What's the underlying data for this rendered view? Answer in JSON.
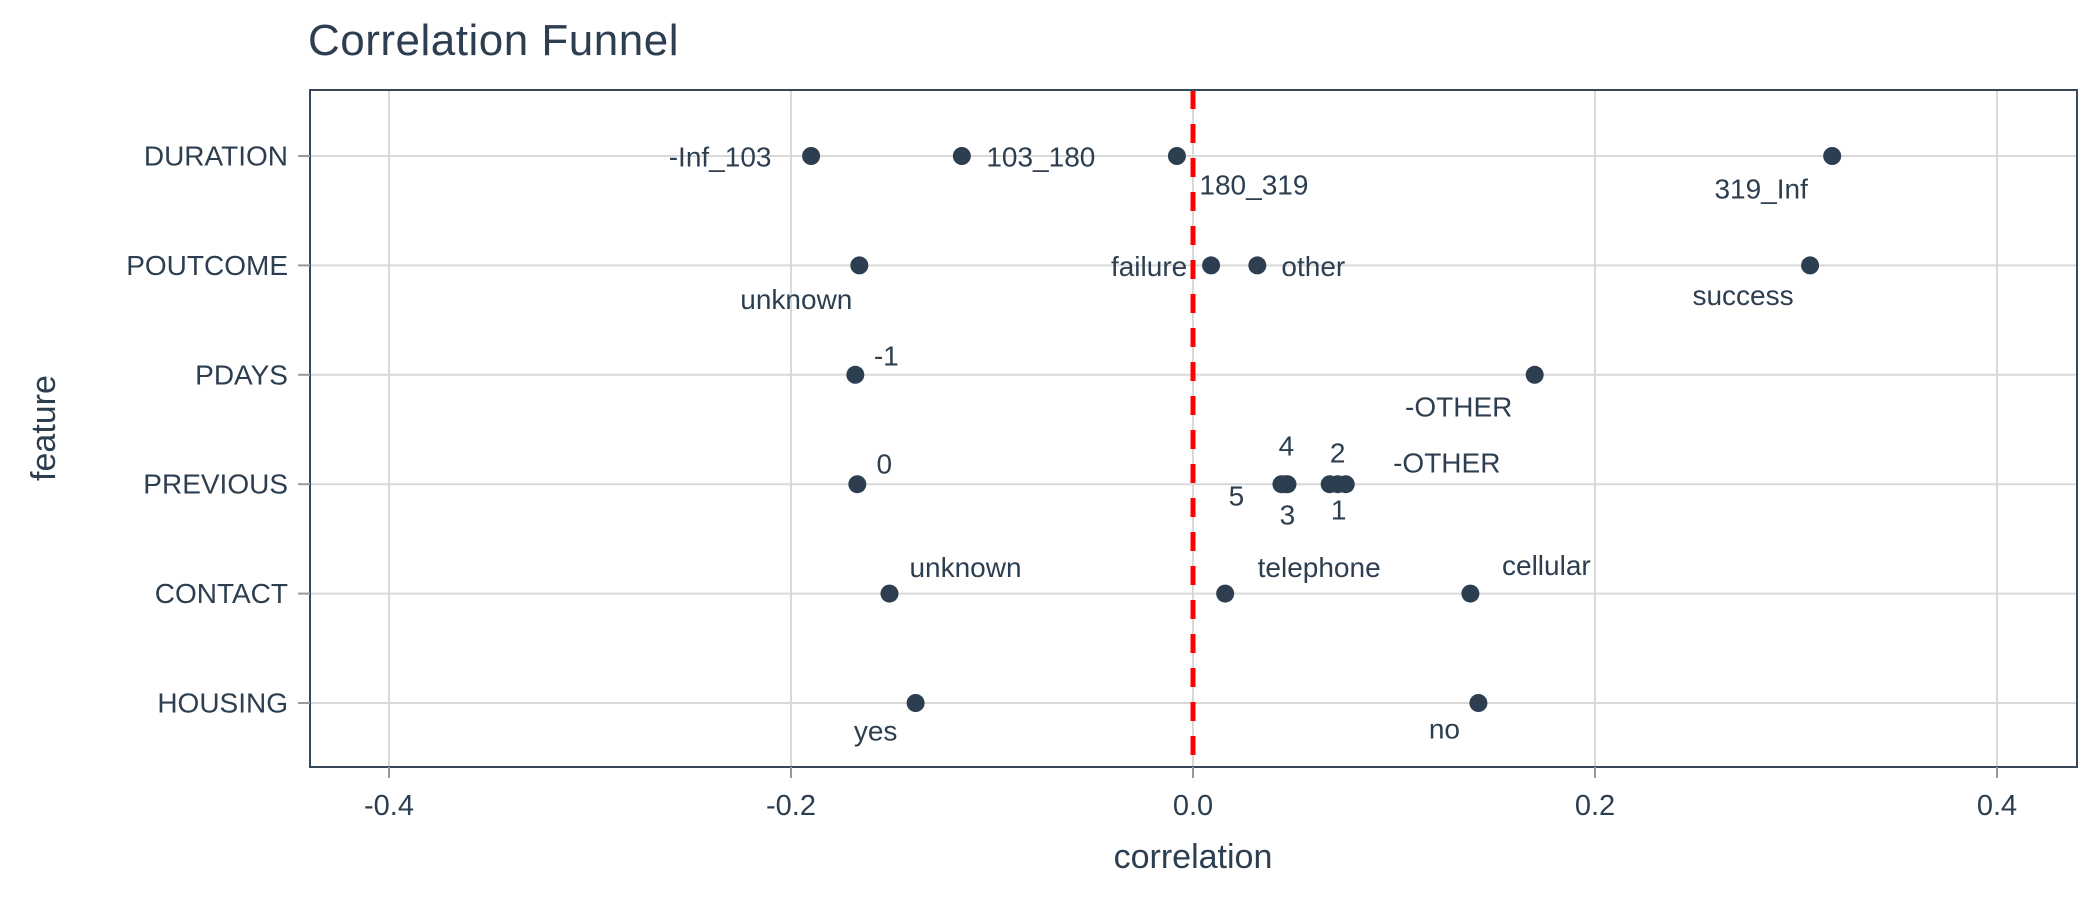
{
  "title": "Correlation Funnel",
  "colors": {
    "text": "#2c3e50",
    "point": "#2c3e50",
    "grid": "#d9d9d9",
    "panel_border": "#37485a",
    "zero_line": "#ff0000",
    "axis_tick": "#9a9a9a"
  },
  "x_axis": {
    "label": "correlation",
    "tick_labels": [
      "-0.4",
      "-0.2",
      "0.0",
      "0.2",
      "0.4"
    ]
  },
  "y_axis": {
    "label": "feature",
    "categories": [
      "DURATION",
      "POUTCOME",
      "PDAYS",
      "PREVIOUS",
      "CONTACT",
      "HOUSING"
    ]
  },
  "chart_data": {
    "type": "scatter",
    "title": "Correlation Funnel",
    "xlabel": "correlation",
    "ylabel": "feature",
    "xlim": [
      -0.44,
      0.44
    ],
    "x_ticks": [
      -0.4,
      -0.2,
      0.0,
      0.2,
      0.4
    ],
    "x_tick_labels": [
      "-0.4",
      "-0.2",
      "0.0",
      "0.2",
      "0.4"
    ],
    "categories": [
      "DURATION",
      "POUTCOME",
      "PDAYS",
      "PREVIOUS",
      "CONTACT",
      "HOUSING"
    ],
    "grid": true,
    "zero_line": {
      "x": 0,
      "style": "dashed",
      "color": "#ff0000"
    },
    "series": [
      {
        "feature": "DURATION",
        "points": [
          {
            "bin": "-Inf_103",
            "correlation": -0.19,
            "label_offset": [
              -91,
              1
            ]
          },
          {
            "bin": "103_180",
            "correlation": -0.115,
            "label_offset": [
              79,
              1
            ]
          },
          {
            "bin": "180_319",
            "correlation": -0.008,
            "label_offset": [
              77,
              29
            ]
          },
          {
            "bin": "319_Inf",
            "correlation": 0.318,
            "label_offset": [
              -71,
              33
            ]
          }
        ]
      },
      {
        "feature": "POUTCOME",
        "points": [
          {
            "bin": "unknown",
            "correlation": -0.166,
            "label_offset": [
              -63,
              34
            ]
          },
          {
            "bin": "failure",
            "correlation": 0.009,
            "label_offset": [
              -62,
              1
            ]
          },
          {
            "bin": "other",
            "correlation": 0.032,
            "label_offset": [
              56,
              1
            ]
          },
          {
            "bin": "success",
            "correlation": 0.307,
            "label_offset": [
              -67,
              30
            ]
          }
        ]
      },
      {
        "feature": "PDAYS",
        "points": [
          {
            "bin": "-1",
            "correlation": -0.168,
            "label_offset": [
              31,
              -19
            ]
          },
          {
            "bin": "-OTHER",
            "correlation": 0.17,
            "label_offset": [
              -76,
              32
            ]
          }
        ]
      },
      {
        "feature": "PREVIOUS",
        "points": [
          {
            "bin": "0",
            "correlation": -0.167,
            "label_offset": [
              27,
              -20
            ]
          },
          {
            "bin": "5",
            "correlation": 0.044,
            "label_offset": [
              -45,
              12
            ]
          },
          {
            "bin": "4",
            "correlation": 0.047,
            "label_offset": [
              -1,
              -38
            ]
          },
          {
            "bin": "3",
            "correlation": 0.046,
            "label_offset": [
              2,
              31
            ]
          },
          {
            "bin": "2",
            "correlation": 0.068,
            "label_offset": [
              8,
              -31
            ]
          },
          {
            "bin": "1",
            "correlation": 0.072,
            "label_offset": [
              1,
              26
            ]
          },
          {
            "bin": "-OTHER",
            "correlation": 0.076,
            "label_offset": [
              101,
              -21
            ]
          }
        ]
      },
      {
        "feature": "CONTACT",
        "points": [
          {
            "bin": "unknown",
            "correlation": -0.151,
            "label_offset": [
              76,
              -26
            ]
          },
          {
            "bin": "telephone",
            "correlation": 0.016,
            "label_offset": [
              94,
              -26
            ]
          },
          {
            "bin": "cellular",
            "correlation": 0.138,
            "label_offset": [
              76,
              -28
            ]
          }
        ]
      },
      {
        "feature": "HOUSING",
        "points": [
          {
            "bin": "yes",
            "correlation": -0.138,
            "label_offset": [
              -40,
              28
            ]
          },
          {
            "bin": "no",
            "correlation": 0.142,
            "label_offset": [
              -34,
              26
            ]
          }
        ]
      }
    ]
  }
}
